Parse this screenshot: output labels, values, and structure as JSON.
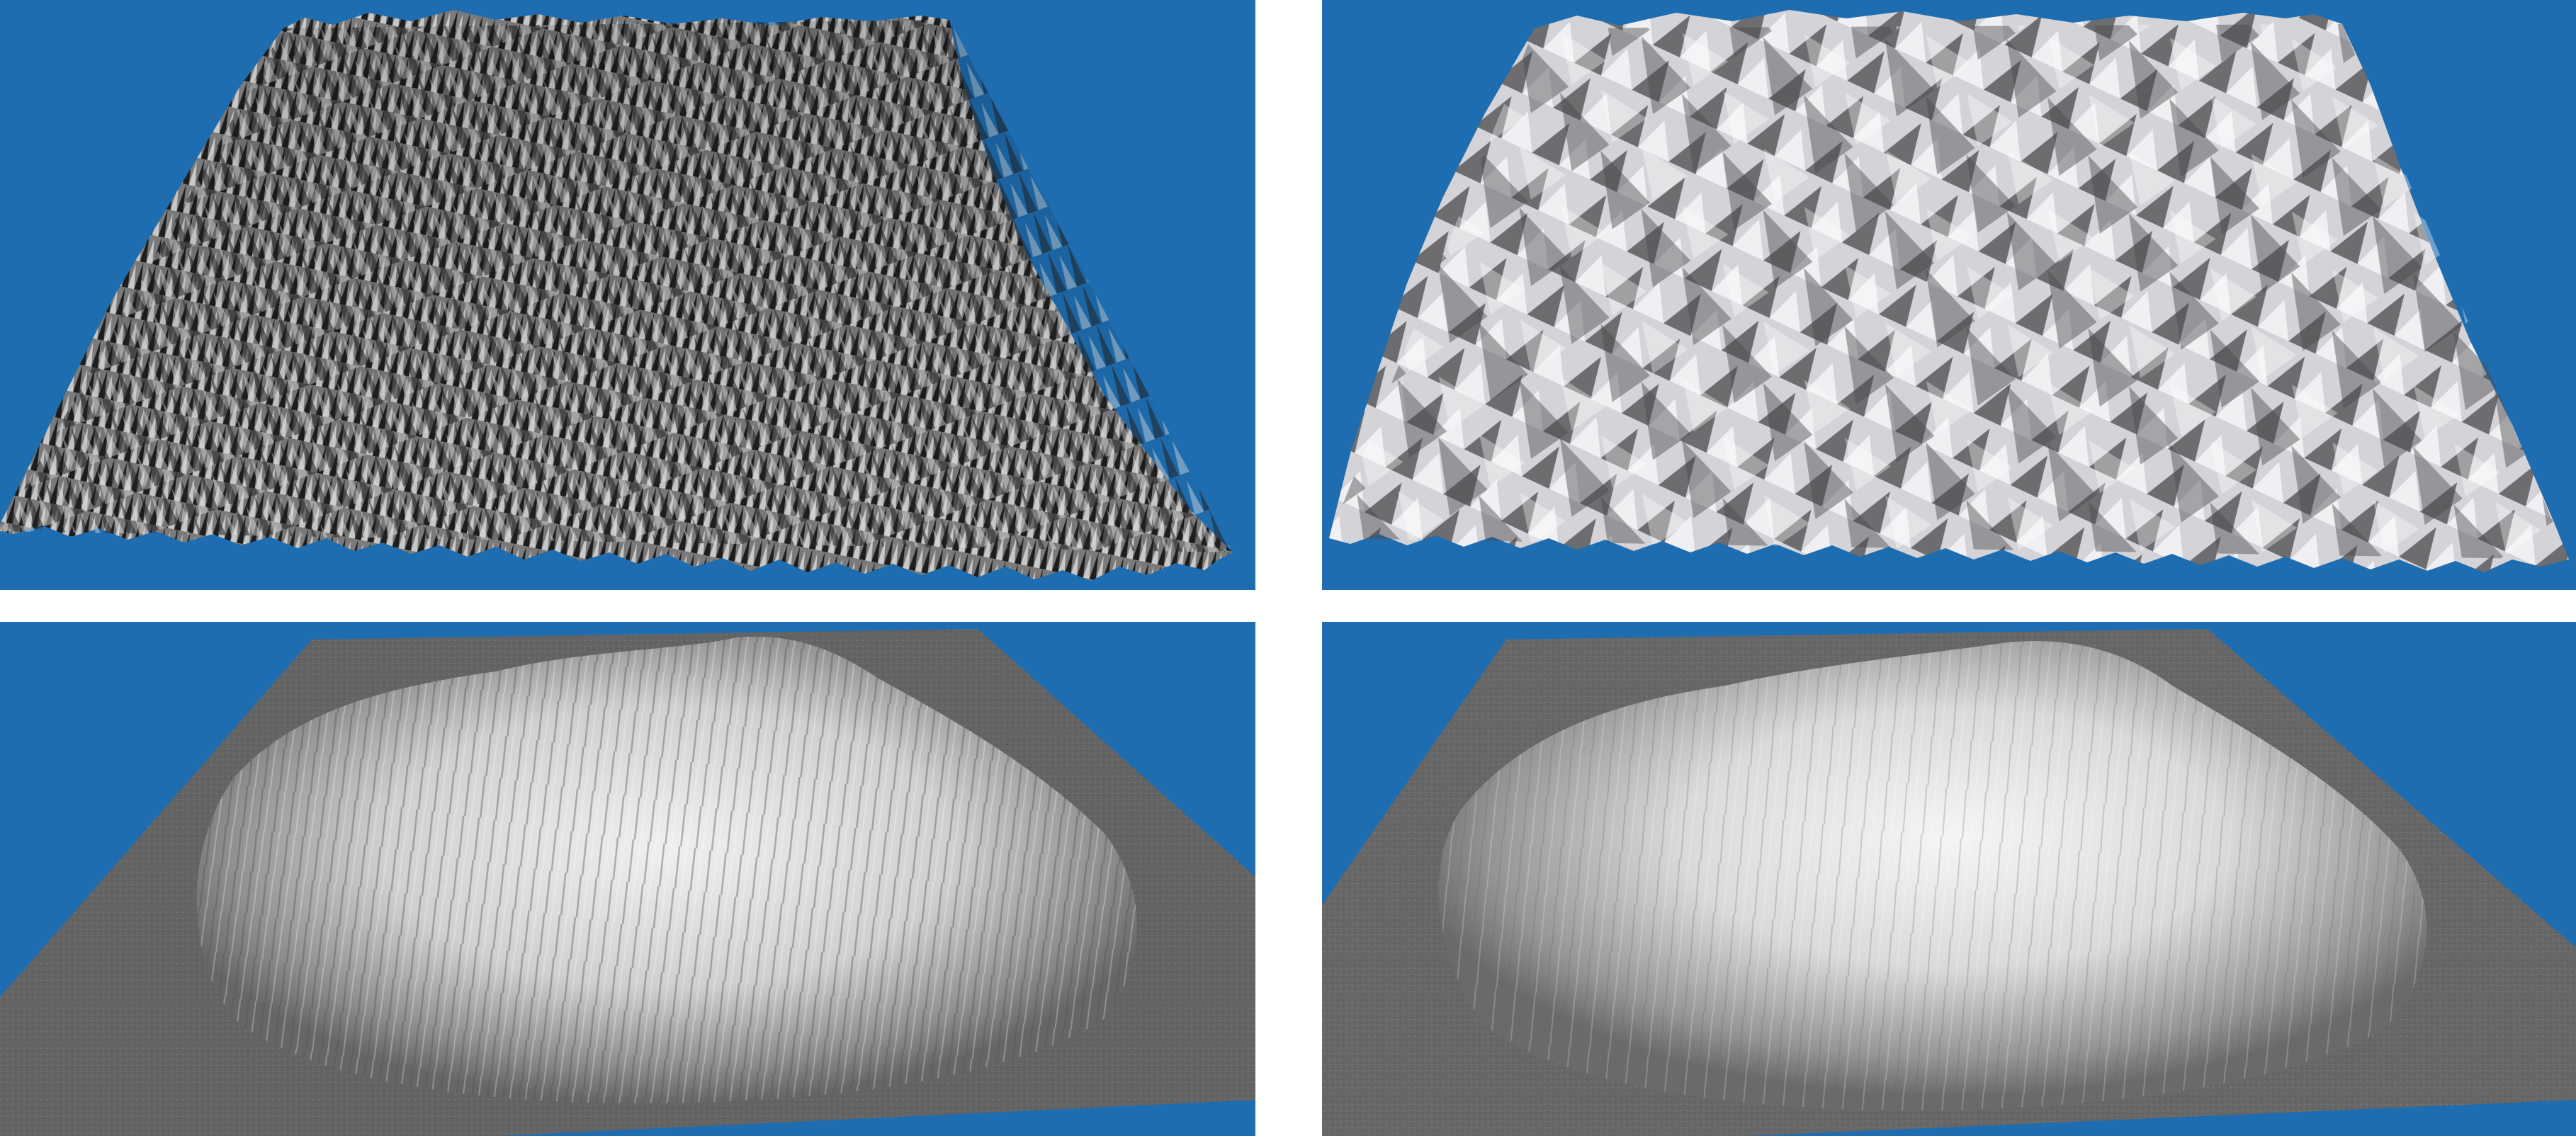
{
  "background_color": "#ffffff",
  "sky_color": "#1e6db0",
  "ground_color": "#666666",
  "panels": [
    {
      "id": "top-left",
      "subject": "rugged-ridged-terrain-dark",
      "rock_dark": "#2a2a2a",
      "rock_light": "#bdbdbd"
    },
    {
      "id": "top-right",
      "subject": "eroded-valley-terrain-light",
      "rock_dark": "#5a5a5a",
      "rock_light": "#e4e4e6"
    },
    {
      "id": "bottom-left",
      "subject": "mountain-massif-on-plain",
      "rock_dark": "#6e6e6e",
      "rock_light": "#eeeeee"
    },
    {
      "id": "bottom-right",
      "subject": "smoothed-mountain-massif-on-plain",
      "rock_dark": "#7a7a7a",
      "rock_light": "#f2f2f2"
    }
  ]
}
